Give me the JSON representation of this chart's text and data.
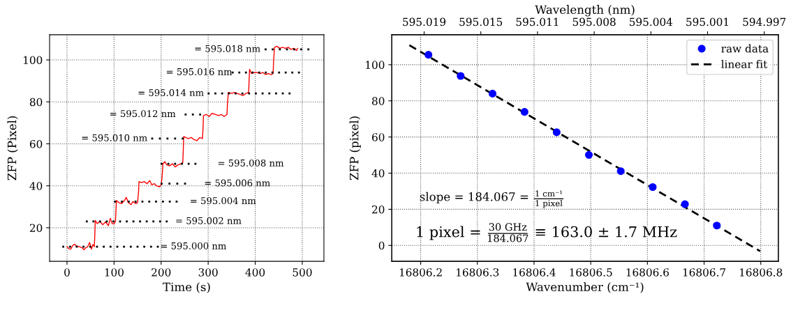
{
  "chart_data": [
    {
      "type": "line",
      "xlabel": "Time (s)",
      "ylabel": "ZFP (Pixel)",
      "xlim": [
        -37,
        546
      ],
      "ylim": [
        4,
        112
      ],
      "xticks": [
        0,
        100,
        200,
        300,
        400,
        500
      ],
      "yticks": [
        20,
        40,
        60,
        80,
        100
      ],
      "grid": true,
      "legend": false,
      "series": [
        {
          "color": "#ff0000",
          "x": [
            0,
            4,
            8,
            12,
            16,
            20,
            26,
            32,
            36,
            40,
            44,
            48,
            52,
            55,
            58,
            59,
            60,
            64,
            70,
            76,
            82,
            88,
            92,
            96,
            100,
            103,
            104,
            105,
            110,
            116,
            122,
            126,
            130,
            136,
            140,
            146,
            150,
            152,
            153,
            158,
            164,
            170,
            176,
            180,
            186,
            190,
            196,
            200,
            202,
            204,
            208,
            212,
            218,
            224,
            230,
            236,
            242,
            246,
            247,
            248,
            252,
            258,
            264,
            270,
            276,
            282,
            288,
            289,
            290,
            296,
            302,
            308,
            316,
            322,
            328,
            334,
            340,
            341,
            343,
            350,
            356,
            362,
            368,
            374,
            380,
            386,
            387,
            388,
            392,
            398,
            404,
            410,
            416,
            422,
            428,
            434,
            438,
            439,
            441,
            446,
            452,
            458,
            464,
            470,
            476,
            482,
            488,
            490
          ],
          "values": [
            11,
            10,
            9.8,
            11.5,
            12.2,
            11.3,
            11,
            10.5,
            9.5,
            10.5,
            11,
            13,
            9.8,
            12,
            11,
            16,
            23.5,
            22,
            23,
            21.5,
            22.8,
            21,
            24.5,
            22,
            21.8,
            23,
            28,
            33,
            32,
            31.5,
            33,
            34.5,
            32,
            31,
            32.5,
            31.5,
            32,
            37,
            42,
            41.5,
            42,
            41,
            42.5,
            40.5,
            41,
            40,
            39.5,
            40.5,
            44,
            50.5,
            51.5,
            50,
            49.5,
            50.5,
            49,
            50,
            50.5,
            51,
            56,
            63.5,
            63,
            62.5,
            63,
            62,
            61.5,
            63,
            62.5,
            67,
            73.5,
            74,
            73,
            74.5,
            74,
            73.5,
            74,
            73,
            74,
            79,
            84.5,
            84,
            84.5,
            84,
            83.5,
            83,
            84,
            84.5,
            90,
            95.5,
            93.5,
            94,
            94,
            93.5,
            94,
            93,
            93.5,
            93,
            93.5,
            99,
            106,
            106.5,
            105.5,
            106,
            105.5,
            106,
            105,
            105.5,
            104.5,
            105.5
          ]
        },
        {
          "color": "#000000",
          "line_style": "dotted",
          "x": [
            -10,
            195
          ],
          "values": [
            11,
            11
          ]
        },
        {
          "color": "#000000",
          "line_style": "dotted",
          "x": [
            40,
            214
          ],
          "values": [
            23,
            23
          ]
        },
        {
          "color": "#000000",
          "line_style": "dotted",
          "x": [
            100,
            235
          ],
          "values": [
            32.5,
            32.5
          ]
        },
        {
          "color": "#000000",
          "line_style": "dotted",
          "x": [
            199,
            253
          ],
          "values": [
            41,
            41
          ]
        },
        {
          "color": "#000000",
          "line_style": "dotted",
          "x": [
            199,
            275
          ],
          "values": [
            50.5,
            50.5
          ]
        },
        {
          "color": "#000000",
          "line_style": "dotted",
          "x": [
            179,
            248
          ],
          "values": [
            62.5,
            62.5
          ]
        },
        {
          "color": "#000000",
          "line_style": "dotted",
          "x": [
            250,
            285
          ],
          "values": [
            74,
            74
          ]
        },
        {
          "color": "#000000",
          "line_style": "dotted",
          "x": [
            299,
            475
          ],
          "values": [
            84,
            84
          ]
        },
        {
          "color": "#000000",
          "line_style": "dotted",
          "x": [
            350,
            495
          ],
          "values": [
            94,
            94
          ]
        },
        {
          "color": "#000000",
          "line_style": "dotted",
          "x": [
            420,
            515
          ],
          "values": [
            105,
            105
          ]
        }
      ],
      "annotations": [
        "= 595.000 nm",
        "= 595.002 nm",
        "= 595.004 nm",
        "= 595.006 nm",
        "= 595.008 nm",
        "= 595.010 nm",
        "= 595.012 nm",
        "= 595.014 nm",
        "= 595.016 nm",
        "= 595.018 nm"
      ]
    },
    {
      "type": "scatter",
      "xlabel": "Wavenumber (cm⁻¹)",
      "ylabel": "ZFP (pixel)",
      "x2label": "Wavelength (nm)",
      "xlim": [
        16806.149,
        16806.831
      ],
      "ylim": [
        -8.8,
        116.6
      ],
      "xticks": [
        {
          "value": 16806.2,
          "label": "16806.2"
        },
        {
          "value": 16806.3,
          "label": "16806.3"
        },
        {
          "value": 16806.4,
          "label": "16806.4"
        },
        {
          "value": 16806.5,
          "label": "16806.5"
        },
        {
          "value": 16806.6,
          "label": "16806.6"
        },
        {
          "value": 16806.7,
          "label": "16806.7"
        },
        {
          "value": 16806.8,
          "label": "16806.8"
        }
      ],
      "yticks": [
        0,
        20,
        40,
        60,
        80,
        100
      ],
      "x2lim": [
        595.02053,
        594.99639
      ],
      "x2ticks": [
        {
          "value": 595.01851,
          "label": "595.019"
        },
        {
          "value": 595.01497,
          "label": "595.015"
        },
        {
          "value": 595.01143,
          "label": "595.011"
        },
        {
          "value": 595.00789,
          "label": "595.008"
        },
        {
          "value": 595.00435,
          "label": "595.004"
        },
        {
          "value": 595.00081,
          "label": "595.001"
        },
        {
          "value": 594.99727,
          "label": "594.997"
        }
      ],
      "grid": true,
      "legend": "top right",
      "series": [
        {
          "name": "raw data",
          "type": "scatter",
          "marker": "circle",
          "color": "#0000ff",
          "x": [
            16806.2137,
            16806.2705,
            16806.3268,
            16806.3832,
            16806.4399,
            16806.4967,
            16806.553,
            16806.6094,
            16806.6662,
            16806.7225
          ],
          "values": [
            105.5,
            93.8,
            84.0,
            73.9,
            62.6,
            50.1,
            41.1,
            32.3,
            22.8,
            11.0
          ]
        },
        {
          "name": "linear fit",
          "type": "line",
          "line_style": "dashed",
          "color": "#000000",
          "x": [
            16806.18,
            16806.799
          ],
          "values": [
            110.8,
            -3.2
          ]
        }
      ],
      "annotations": [
        "slope = 184.067 =",
        "1 cm⁻¹",
        "1 pixel",
        "1 pixel =",
        "30 GHz",
        "184.067",
        "≡ 163.0 ± 1.7 MHz"
      ]
    }
  ]
}
